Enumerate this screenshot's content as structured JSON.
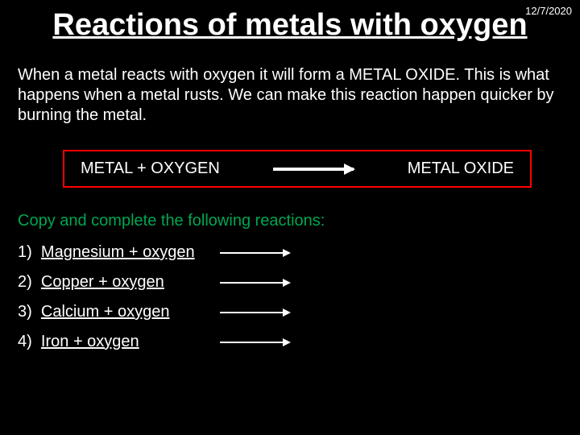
{
  "date": "12/7/2020",
  "title": "Reactions of metals with oxygen",
  "intro": "When a metal reacts with oxygen it will form a METAL OXIDE.  This is what happens when a metal rusts.  We can make this reaction happen quicker by burning the metal.",
  "equation": {
    "left": "METAL  +  OXYGEN",
    "right": "METAL OXIDE"
  },
  "instruction": "Copy and complete the following reactions:",
  "reactions": [
    {
      "num": "1)",
      "text": "Magnesium + oxygen"
    },
    {
      "num": "2)",
      "text": "Copper + oxygen"
    },
    {
      "num": "3)",
      "text": "Calcium + oxygen"
    },
    {
      "num": "4)",
      "text": "Iron + oxygen"
    }
  ],
  "colors": {
    "background": "#000000",
    "text": "#ffffff",
    "box_border": "#ff0000",
    "instruction": "#00a651"
  }
}
